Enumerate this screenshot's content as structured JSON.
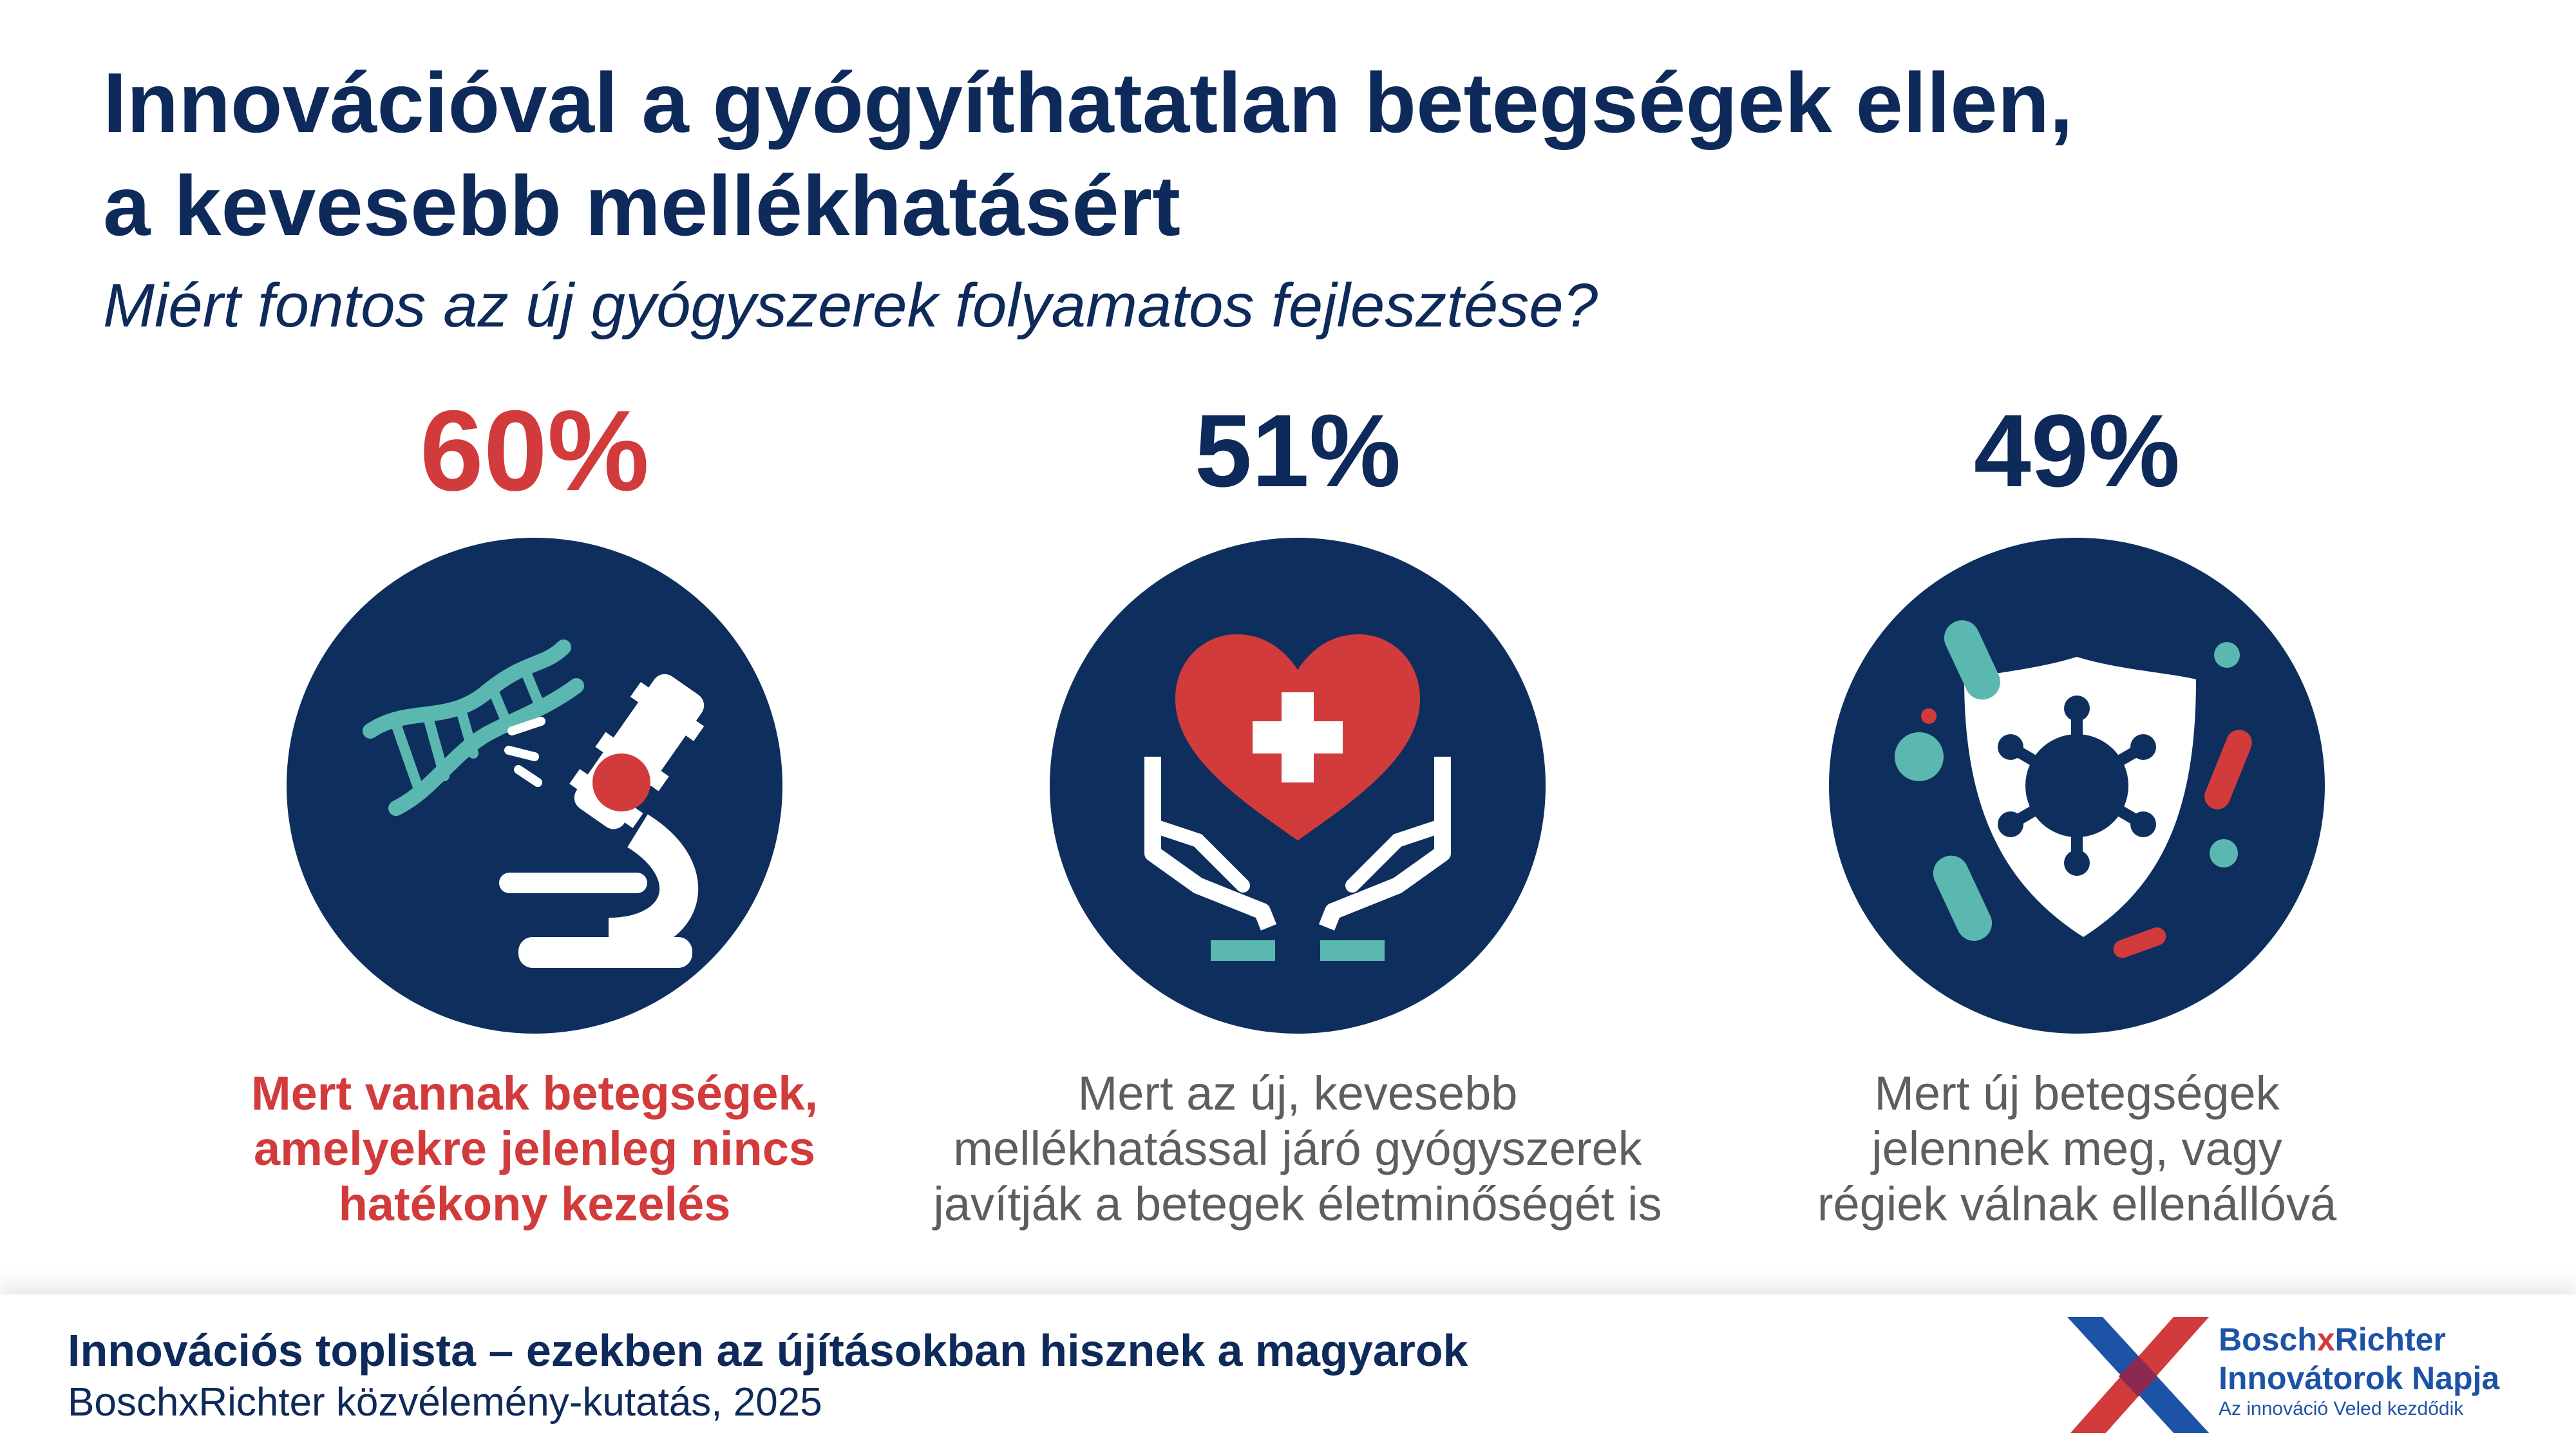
{
  "title": {
    "line1": "Innovációval a gyógyíthatatlan betegségek ellen,",
    "line2": "a kevesebb mellékhatásért"
  },
  "subtitle": "Miért fontos az új gyógyszerek folyamatos fejlesztése?",
  "chart_data": {
    "type": "table",
    "title": "Innovációval a gyógyíthatatlan betegségek ellen, a kevesebb mellékhatásért",
    "subtitle": "Miért fontos az új gyógyszerek folyamatos fejlesztése?",
    "unit": "%",
    "items": [
      {
        "value": 60,
        "label": "60%",
        "icon": "dna-microscope-icon",
        "highlight": true,
        "text": "Mert vannak betegségek,\namelyekre jelenleg nincs\nhatékony kezelés"
      },
      {
        "value": 51,
        "label": "51%",
        "icon": "heart-hands-icon",
        "highlight": false,
        "text": "Mert az új, kevesebb\nmellékhatással járó gyógyszerek\njavítják a betegek életminőségét is"
      },
      {
        "value": 49,
        "label": "49%",
        "icon": "virus-shield-icon",
        "highlight": false,
        "text": "Mert új betegségek\njelennek meg, vagy\nrégiek válnak ellenállóvá"
      }
    ]
  },
  "footer": {
    "title": "Innovációs toplista – ezekben az újításokban hisznek a magyarok",
    "source": "BoschxRichter közvélemény-kutatás, 2025"
  },
  "logo": {
    "name_part1": "Bosch",
    "name_x": "x",
    "name_part2": "Richter",
    "line2": "Innovátorok Napja",
    "tagline": "Az innováció Veled kezdődik"
  },
  "colors": {
    "navy": "#0e2f5e",
    "red": "#d23b3b",
    "teal": "#5bb8b0",
    "gray_text": "#5e5e5e",
    "logo_blue": "#1d53a6"
  }
}
